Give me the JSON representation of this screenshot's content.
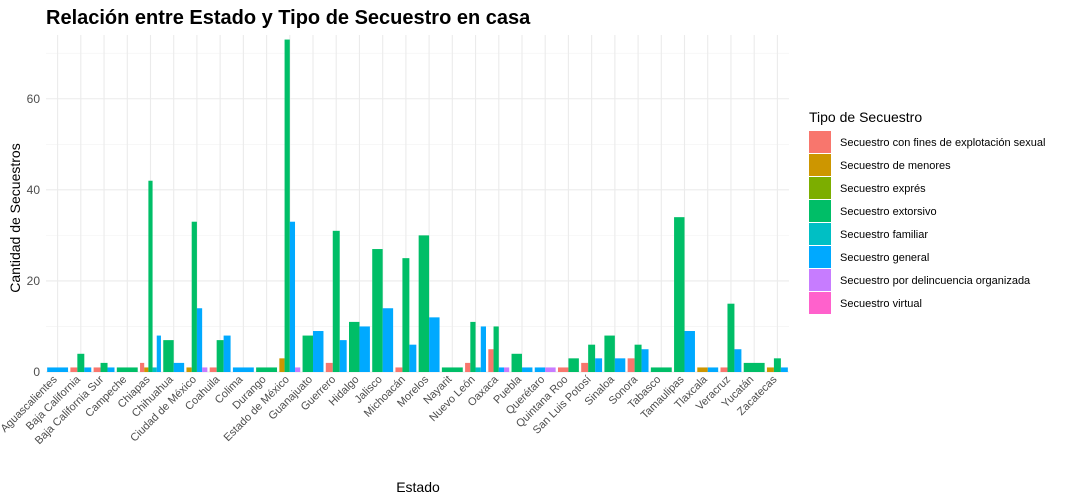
{
  "chart_data": {
    "type": "bar",
    "title": "Relación entre Estado y Tipo de Secuestro en casa",
    "xlabel": "Estado",
    "ylabel": "Cantidad de Secuestros",
    "ylim": [
      0,
      74
    ],
    "yticks": [
      0,
      20,
      40,
      60
    ],
    "grid": true,
    "legend_position": "right",
    "legend_title": "Tipo de Secuestro",
    "categories": [
      "Aguascalientes",
      "Baja California",
      "Baja California Sur",
      "Campeche",
      "Chiapas",
      "Chihuahua",
      "Ciudad de México",
      "Coahuila",
      "Colima",
      "Durango",
      "Estado de México",
      "Guanajuato",
      "Guerrero",
      "Hidalgo",
      "Jalisco",
      "Michoacán",
      "Morelos",
      "Nayarit",
      "Nuevo León",
      "Oaxaca",
      "Puebla",
      "Querétaro",
      "Quintana Roo",
      "San Luis Potosí",
      "Sinaloa",
      "Sonora",
      "Tabasco",
      "Tamaulipas",
      "Tlaxcala",
      "Veracruz",
      "Yucatán",
      "Zacatecas"
    ],
    "series": [
      {
        "name": "Secuestro con fines de explotación sexual",
        "color": "#F8766D"
      },
      {
        "name": "Secuestro de menores",
        "color": "#CD9600"
      },
      {
        "name": "Secuestro exprés",
        "color": "#7CAE00"
      },
      {
        "name": "Secuestro extorsivo",
        "color": "#00BE67"
      },
      {
        "name": "Secuestro familiar",
        "color": "#00BFC4"
      },
      {
        "name": "Secuestro general",
        "color": "#00A9FF"
      },
      {
        "name": "Secuestro por delincuencia organizada",
        "color": "#C77CFF"
      },
      {
        "name": "Secuestro virtual",
        "color": "#FF61CC"
      }
    ],
    "data": [
      {
        "state": "Aguascalientes",
        "bars": [
          [
            "Secuestro general",
            1
          ]
        ]
      },
      {
        "state": "Baja California",
        "bars": [
          [
            "Secuestro con fines de explotación sexual",
            1
          ],
          [
            "Secuestro extorsivo",
            4
          ],
          [
            "Secuestro general",
            1
          ]
        ]
      },
      {
        "state": "Baja California Sur",
        "bars": [
          [
            "Secuestro con fines de explotación sexual",
            1
          ],
          [
            "Secuestro extorsivo",
            2
          ],
          [
            "Secuestro general",
            1
          ]
        ]
      },
      {
        "state": "Campeche",
        "bars": [
          [
            "Secuestro extorsivo",
            1
          ]
        ]
      },
      {
        "state": "Chiapas",
        "bars": [
          [
            "Secuestro con fines de explotación sexual",
            2
          ],
          [
            "Secuestro de menores",
            1
          ],
          [
            "Secuestro extorsivo",
            42
          ],
          [
            "Secuestro familiar",
            1
          ],
          [
            "Secuestro general",
            8
          ]
        ]
      },
      {
        "state": "Chihuahua",
        "bars": [
          [
            "Secuestro extorsivo",
            7
          ],
          [
            "Secuestro general",
            2
          ]
        ]
      },
      {
        "state": "Ciudad de México",
        "bars": [
          [
            "Secuestro de menores",
            1
          ],
          [
            "Secuestro extorsivo",
            33
          ],
          [
            "Secuestro general",
            14
          ],
          [
            "Secuestro por delincuencia organizada",
            1
          ]
        ]
      },
      {
        "state": "Coahuila",
        "bars": [
          [
            "Secuestro con fines de explotación sexual",
            1
          ],
          [
            "Secuestro extorsivo",
            7
          ],
          [
            "Secuestro general",
            8
          ]
        ]
      },
      {
        "state": "Colima",
        "bars": [
          [
            "Secuestro general",
            1
          ]
        ]
      },
      {
        "state": "Durango",
        "bars": [
          [
            "Secuestro extorsivo",
            1
          ]
        ]
      },
      {
        "state": "Estado de México",
        "bars": [
          [
            "Secuestro de menores",
            3
          ],
          [
            "Secuestro extorsivo",
            73
          ],
          [
            "Secuestro general",
            33
          ],
          [
            "Secuestro por delincuencia organizada",
            1
          ]
        ]
      },
      {
        "state": "Guanajuato",
        "bars": [
          [
            "Secuestro extorsivo",
            8
          ],
          [
            "Secuestro general",
            9
          ]
        ]
      },
      {
        "state": "Guerrero",
        "bars": [
          [
            "Secuestro con fines de explotación sexual",
            2
          ],
          [
            "Secuestro extorsivo",
            31
          ],
          [
            "Secuestro general",
            7
          ]
        ]
      },
      {
        "state": "Hidalgo",
        "bars": [
          [
            "Secuestro extorsivo",
            11
          ],
          [
            "Secuestro general",
            10
          ]
        ]
      },
      {
        "state": "Jalisco",
        "bars": [
          [
            "Secuestro extorsivo",
            27
          ],
          [
            "Secuestro general",
            14
          ]
        ]
      },
      {
        "state": "Michoacán",
        "bars": [
          [
            "Secuestro con fines de explotación sexual",
            1
          ],
          [
            "Secuestro extorsivo",
            25
          ],
          [
            "Secuestro general",
            6
          ]
        ]
      },
      {
        "state": "Morelos",
        "bars": [
          [
            "Secuestro extorsivo",
            30
          ],
          [
            "Secuestro general",
            12
          ]
        ]
      },
      {
        "state": "Nayarit",
        "bars": [
          [
            "Secuestro extorsivo",
            1
          ]
        ]
      },
      {
        "state": "Nuevo León",
        "bars": [
          [
            "Secuestro con fines de explotación sexual",
            2
          ],
          [
            "Secuestro extorsivo",
            11
          ],
          [
            "Secuestro familiar",
            1
          ],
          [
            "Secuestro general",
            10
          ]
        ]
      },
      {
        "state": "Oaxaca",
        "bars": [
          [
            "Secuestro con fines de explotación sexual",
            5
          ],
          [
            "Secuestro extorsivo",
            10
          ],
          [
            "Secuestro general",
            1
          ],
          [
            "Secuestro por delincuencia organizada",
            1
          ]
        ]
      },
      {
        "state": "Puebla",
        "bars": [
          [
            "Secuestro extorsivo",
            4
          ],
          [
            "Secuestro general",
            1
          ]
        ]
      },
      {
        "state": "Querétaro",
        "bars": [
          [
            "Secuestro general",
            1
          ],
          [
            "Secuestro por delincuencia organizada",
            1
          ]
        ]
      },
      {
        "state": "Quintana Roo",
        "bars": [
          [
            "Secuestro con fines de explotación sexual",
            1
          ],
          [
            "Secuestro extorsivo",
            3
          ]
        ]
      },
      {
        "state": "San Luis Potosí",
        "bars": [
          [
            "Secuestro con fines de explotación sexual",
            2
          ],
          [
            "Secuestro extorsivo",
            6
          ],
          [
            "Secuestro general",
            3
          ]
        ]
      },
      {
        "state": "Sinaloa",
        "bars": [
          [
            "Secuestro extorsivo",
            8
          ],
          [
            "Secuestro general",
            3
          ]
        ]
      },
      {
        "state": "Sonora",
        "bars": [
          [
            "Secuestro con fines de explotación sexual",
            3
          ],
          [
            "Secuestro extorsivo",
            6
          ],
          [
            "Secuestro general",
            5
          ]
        ]
      },
      {
        "state": "Tabasco",
        "bars": [
          [
            "Secuestro extorsivo",
            1
          ]
        ]
      },
      {
        "state": "Tamaulipas",
        "bars": [
          [
            "Secuestro extorsivo",
            34
          ],
          [
            "Secuestro general",
            9
          ]
        ]
      },
      {
        "state": "Tlaxcala",
        "bars": [
          [
            "Secuestro de menores",
            1
          ],
          [
            "Secuestro general",
            1
          ]
        ]
      },
      {
        "state": "Veracruz",
        "bars": [
          [
            "Secuestro con fines de explotación sexual",
            1
          ],
          [
            "Secuestro extorsivo",
            15
          ],
          [
            "Secuestro general",
            5
          ]
        ]
      },
      {
        "state": "Yucatán",
        "bars": [
          [
            "Secuestro extorsivo",
            2
          ]
        ]
      },
      {
        "state": "Zacatecas",
        "bars": [
          [
            "Secuestro de menores",
            1
          ],
          [
            "Secuestro extorsivo",
            3
          ],
          [
            "Secuestro general",
            1
          ]
        ]
      }
    ]
  }
}
